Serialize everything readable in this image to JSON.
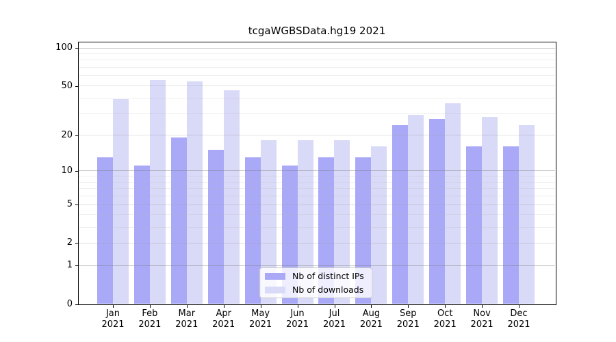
{
  "chart_data": {
    "type": "bar",
    "title": "tcgaWGBSData.hg19 2021",
    "categories": [
      "Jan",
      "Feb",
      "Mar",
      "Apr",
      "May",
      "Jun",
      "Jul",
      "Aug",
      "Sep",
      "Oct",
      "Nov",
      "Dec"
    ],
    "x_axis": {
      "year_label": "2021"
    },
    "series": [
      {
        "name": "Nb of distinct IPs",
        "color": "#a9a9f7",
        "values": [
          13,
          11,
          19,
          15,
          13,
          11,
          13,
          13,
          24,
          27,
          16,
          16
        ]
      },
      {
        "name": "Nb of downloads",
        "color": "#d9d9f8",
        "values": [
          39,
          55,
          54,
          46,
          18,
          18,
          18,
          16,
          29,
          36,
          28,
          24
        ]
      }
    ],
    "y_axis": {
      "scale": "log1p",
      "tick_labels": [
        "100",
        "50",
        "20",
        "10",
        "5",
        "2",
        "1",
        "0"
      ],
      "tick_values": [
        100,
        50,
        20,
        10,
        5,
        2,
        1,
        0
      ],
      "emphasized_gridlines": [
        1,
        10,
        100
      ],
      "minor_gridlines": [
        3,
        4,
        6,
        7,
        8,
        9,
        30,
        40,
        60,
        70,
        80,
        90
      ],
      "range": [
        0,
        100
      ]
    },
    "grid": true,
    "legend_position": "bottom-center",
    "colors": {
      "background": "#ffffff",
      "axis": "#000000",
      "gridline_major": "#c8c8c8",
      "gridline_mid": "#e2e2e2",
      "gridline_minor": "#eeeeee",
      "legend_border": "#cccccc"
    }
  }
}
